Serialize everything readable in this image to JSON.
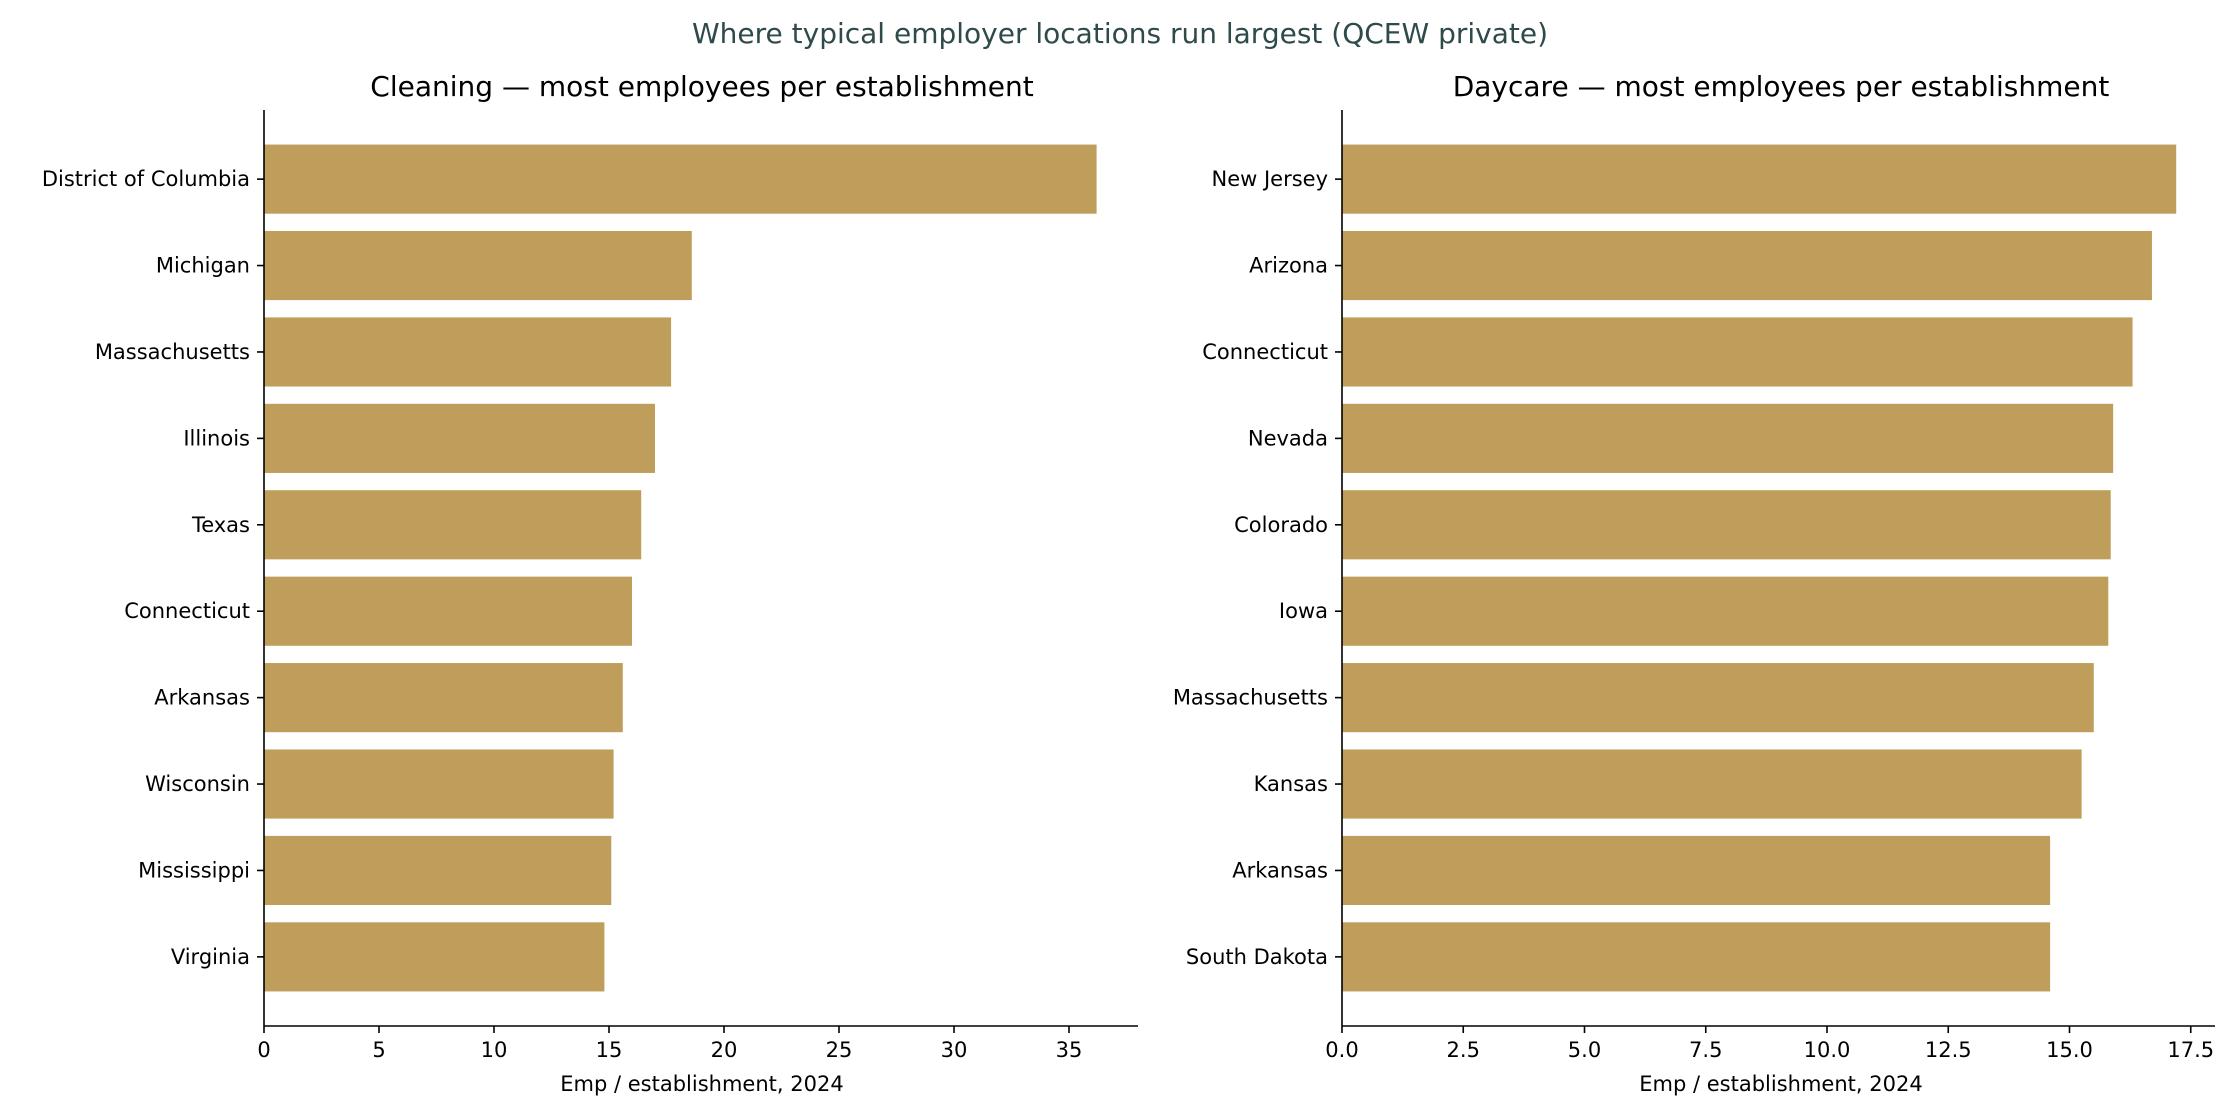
{
  "figure": {
    "suptitle": "Where typical employer locations run largest (QCEW private)"
  },
  "colors": {
    "bar": "#be9e5a",
    "suptitle": "#2f4a4a",
    "axis": "#000000"
  },
  "chart_data": [
    {
      "type": "bar",
      "orientation": "horizontal",
      "title": "Cleaning — most employees per establishment",
      "xlabel": "Emp / establishment, 2024",
      "ylabel": "",
      "xlim": [
        0,
        38
      ],
      "xticks": [
        0,
        5,
        10,
        15,
        20,
        25,
        30,
        35
      ],
      "xtick_labels": [
        "0",
        "5",
        "10",
        "15",
        "20",
        "25",
        "30",
        "35"
      ],
      "categories": [
        "District of Columbia",
        "Michigan",
        "Massachusetts",
        "Illinois",
        "Texas",
        "Connecticut",
        "Arkansas",
        "Wisconsin",
        "Mississippi",
        "Virginia"
      ],
      "values": [
        36.2,
        18.6,
        17.7,
        17.0,
        16.4,
        16.0,
        15.6,
        15.2,
        15.1,
        14.8
      ],
      "grid": false,
      "legend": "none"
    },
    {
      "type": "bar",
      "orientation": "horizontal",
      "title": "Daycare — most employees per establishment",
      "xlabel": "Emp / establishment, 2024",
      "ylabel": "",
      "xlim": [
        0,
        18
      ],
      "xticks": [
        0,
        2.5,
        5,
        7.5,
        10,
        12.5,
        15,
        17.5
      ],
      "xtick_labels": [
        "0.0",
        "2.5",
        "5.0",
        "7.5",
        "10.0",
        "12.5",
        "15.0",
        "17.5"
      ],
      "categories": [
        "New Jersey",
        "Arizona",
        "Connecticut",
        "Nevada",
        "Colorado",
        "Iowa",
        "Massachusetts",
        "Kansas",
        "Arkansas",
        "South Dakota"
      ],
      "values": [
        17.2,
        16.7,
        16.3,
        15.9,
        15.85,
        15.8,
        15.5,
        15.25,
        14.6,
        14.6
      ],
      "grid": false,
      "legend": "none"
    }
  ]
}
